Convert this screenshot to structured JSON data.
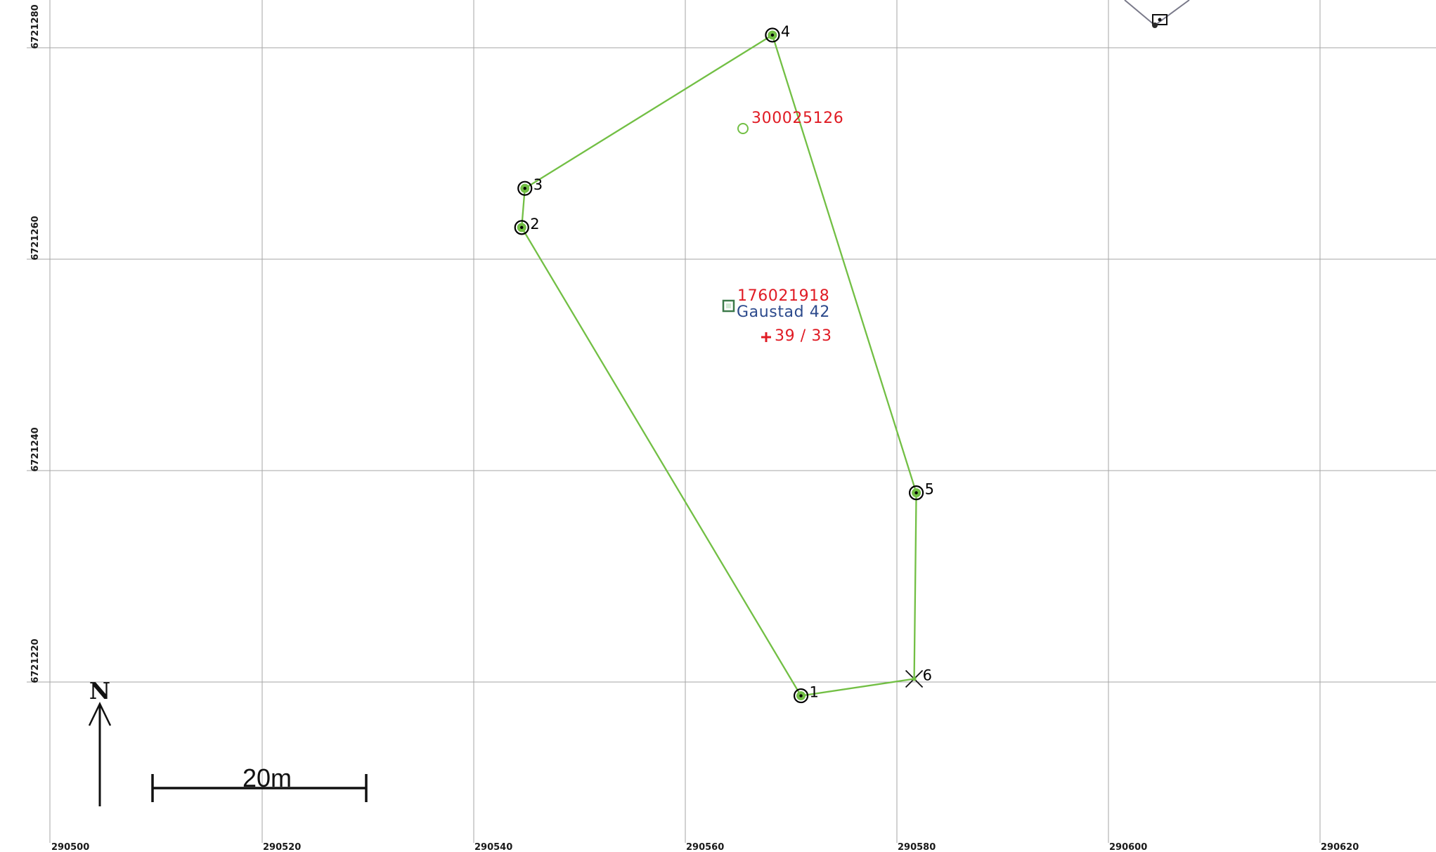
{
  "map": {
    "grid": {
      "x_labels": [
        "290500",
        "290520",
        "290540",
        "290560",
        "290580",
        "290600",
        "290620"
      ],
      "y_labels": [
        "6721280",
        "6721260",
        "6721240",
        "6721220"
      ]
    },
    "boundary_points": [
      {
        "label": "1",
        "easting": 290571.0,
        "northing": 6721218.7,
        "symbol": "circle"
      },
      {
        "label": "2",
        "easting": 290544.6,
        "northing": 6721263.0,
        "symbol": "circle"
      },
      {
        "label": "3",
        "easting": 290544.9,
        "northing": 6721266.7,
        "symbol": "circle"
      },
      {
        "label": "4",
        "easting": 290568.3,
        "northing": 6721281.2,
        "symbol": "circle"
      },
      {
        "label": "5",
        "easting": 290581.9,
        "northing": 6721237.9,
        "symbol": "circle"
      },
      {
        "label": "6",
        "easting": 290581.7,
        "northing": 6721220.3,
        "symbol": "cross"
      }
    ],
    "boundary_color": "#72bf44",
    "features": {
      "point_id": "300025126",
      "building_id": "176021918",
      "address": "Gaustad 42",
      "parcel": "39 / 33"
    },
    "colors": {
      "id_text": "#e01b24",
      "address_text": "#2c4a8c",
      "grid": "#a6a6a6"
    },
    "north_arrow": {
      "letter": "N",
      "icon": "north-arrow-icon"
    },
    "scale_bar": {
      "label": "20m",
      "length_m": 20
    }
  }
}
